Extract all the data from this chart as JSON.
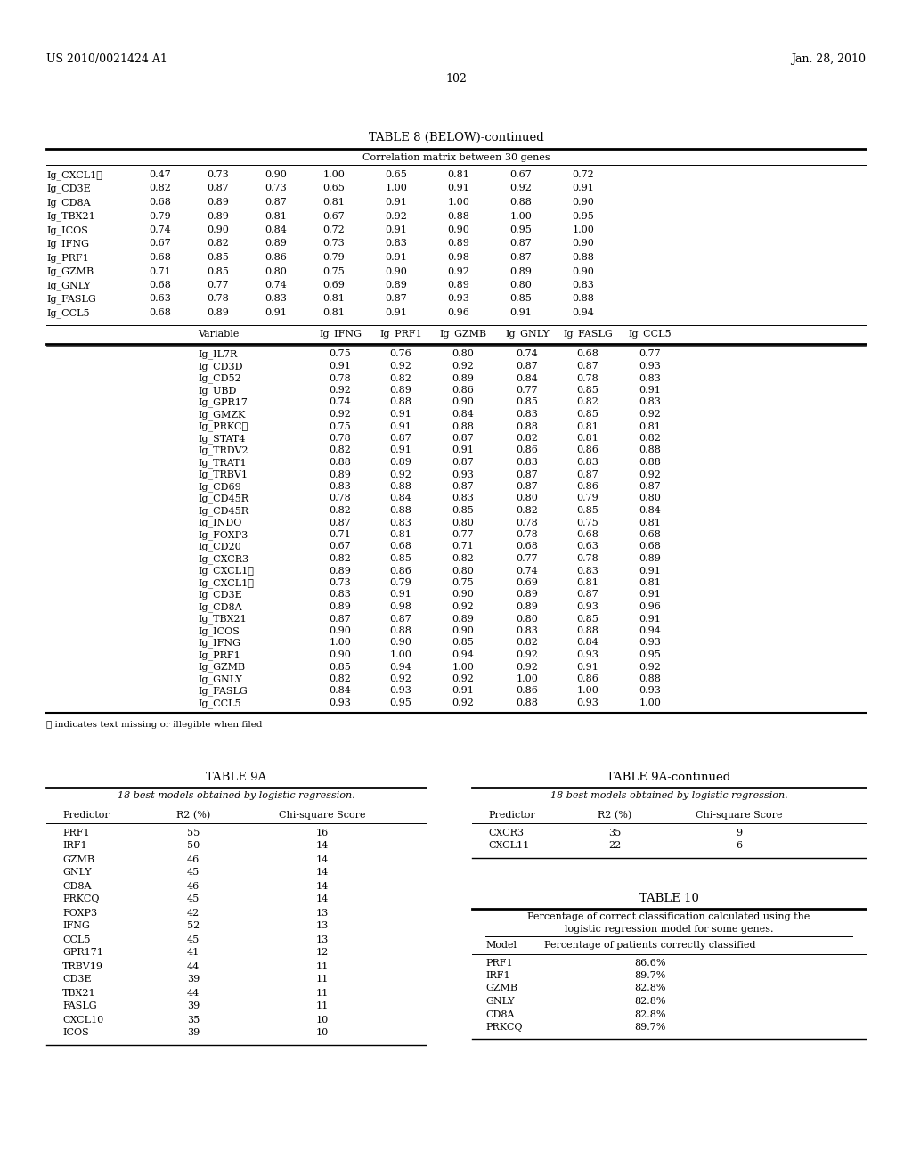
{
  "patent_left": "US 2010/0021424 A1",
  "patent_right": "Jan. 28, 2010",
  "page_num": "102",
  "table8_title": "TABLE 8 (BELOW)-continued",
  "table8_subtitle": "Correlation matrix between 30 genes",
  "table8_top_rows": [
    [
      "Ig_CXCL1ⓘ",
      "0.47",
      "0.73",
      "0.90",
      "1.00",
      "0.65",
      "0.81",
      "0.67",
      "0.72"
    ],
    [
      "Ig_CD3E",
      "0.82",
      "0.87",
      "0.73",
      "0.65",
      "1.00",
      "0.91",
      "0.92",
      "0.91"
    ],
    [
      "Ig_CD8A",
      "0.68",
      "0.89",
      "0.87",
      "0.81",
      "0.91",
      "1.00",
      "0.88",
      "0.90"
    ],
    [
      "Ig_TBX21",
      "0.79",
      "0.89",
      "0.81",
      "0.67",
      "0.92",
      "0.88",
      "1.00",
      "0.95"
    ],
    [
      "Ig_ICOS",
      "0.74",
      "0.90",
      "0.84",
      "0.72",
      "0.91",
      "0.90",
      "0.95",
      "1.00"
    ],
    [
      "Ig_IFNG",
      "0.67",
      "0.82",
      "0.89",
      "0.73",
      "0.83",
      "0.89",
      "0.87",
      "0.90"
    ],
    [
      "Ig_PRF1",
      "0.68",
      "0.85",
      "0.86",
      "0.79",
      "0.91",
      "0.98",
      "0.87",
      "0.88"
    ],
    [
      "Ig_GZMB",
      "0.71",
      "0.85",
      "0.80",
      "0.75",
      "0.90",
      "0.92",
      "0.89",
      "0.90"
    ],
    [
      "Ig_GNLY",
      "0.68",
      "0.77",
      "0.74",
      "0.69",
      "0.89",
      "0.89",
      "0.80",
      "0.83"
    ],
    [
      "Ig_FASLG",
      "0.63",
      "0.78",
      "0.83",
      "0.81",
      "0.87",
      "0.93",
      "0.85",
      "0.88"
    ],
    [
      "Ig_CCL5",
      "0.68",
      "0.89",
      "0.91",
      "0.81",
      "0.91",
      "0.96",
      "0.91",
      "0.94"
    ]
  ],
  "table8_header2": [
    "",
    "Variable",
    "Ig_IFNG",
    "Ig_PRF1",
    "Ig_GZMB",
    "Ig_GNLY",
    "Ig_FASLG",
    "Ig_CCL5"
  ],
  "table8_bottom_rows": [
    [
      "",
      "Ig_IL7R",
      "0.75",
      "0.76",
      "0.80",
      "0.74",
      "0.68",
      "0.77"
    ],
    [
      "",
      "Ig_CD3D",
      "0.91",
      "0.92",
      "0.92",
      "0.87",
      "0.87",
      "0.93"
    ],
    [
      "",
      "Ig_CD52",
      "0.78",
      "0.82",
      "0.89",
      "0.84",
      "0.78",
      "0.83"
    ],
    [
      "",
      "Ig_UBD",
      "0.92",
      "0.89",
      "0.86",
      "0.77",
      "0.85",
      "0.91"
    ],
    [
      "",
      "Ig_GPR17",
      "0.74",
      "0.88",
      "0.90",
      "0.85",
      "0.82",
      "0.83"
    ],
    [
      "",
      "Ig_GMZK",
      "0.92",
      "0.91",
      "0.84",
      "0.83",
      "0.85",
      "0.92"
    ],
    [
      "",
      "Ig_PRKCⓘ",
      "0.75",
      "0.91",
      "0.88",
      "0.88",
      "0.81",
      "0.81"
    ],
    [
      "",
      "Ig_STAT4",
      "0.78",
      "0.87",
      "0.87",
      "0.82",
      "0.81",
      "0.82"
    ],
    [
      "",
      "Ig_TRDV2",
      "0.82",
      "0.91",
      "0.91",
      "0.86",
      "0.86",
      "0.88"
    ],
    [
      "",
      "Ig_TRAT1",
      "0.88",
      "0.89",
      "0.87",
      "0.83",
      "0.83",
      "0.88"
    ],
    [
      "",
      "Ig_TRBV1",
      "0.89",
      "0.92",
      "0.93",
      "0.87",
      "0.87",
      "0.92"
    ],
    [
      "",
      "Ig_CD69",
      "0.83",
      "0.88",
      "0.87",
      "0.87",
      "0.86",
      "0.87"
    ],
    [
      "",
      "Ig_CD45R",
      "0.78",
      "0.84",
      "0.83",
      "0.80",
      "0.79",
      "0.80"
    ],
    [
      "",
      "Ig_CD45R",
      "0.82",
      "0.88",
      "0.85",
      "0.82",
      "0.85",
      "0.84"
    ],
    [
      "",
      "Ig_INDO",
      "0.87",
      "0.83",
      "0.80",
      "0.78",
      "0.75",
      "0.81"
    ],
    [
      "",
      "Ig_FOXP3",
      "0.71",
      "0.81",
      "0.77",
      "0.78",
      "0.68",
      "0.68"
    ],
    [
      "",
      "Ig_CD20",
      "0.67",
      "0.68",
      "0.71",
      "0.68",
      "0.63",
      "0.68"
    ],
    [
      "",
      "Ig_CXCR3",
      "0.82",
      "0.85",
      "0.82",
      "0.77",
      "0.78",
      "0.89"
    ],
    [
      "",
      "Ig_CXCL1ⓘ",
      "0.89",
      "0.86",
      "0.80",
      "0.74",
      "0.83",
      "0.91"
    ],
    [
      "",
      "Ig_CXCL1ⓘ",
      "0.73",
      "0.79",
      "0.75",
      "0.69",
      "0.81",
      "0.81"
    ],
    [
      "",
      "Ig_CD3E",
      "0.83",
      "0.91",
      "0.90",
      "0.89",
      "0.87",
      "0.91"
    ],
    [
      "",
      "Ig_CD8A",
      "0.89",
      "0.98",
      "0.92",
      "0.89",
      "0.93",
      "0.96"
    ],
    [
      "",
      "Ig_TBX21",
      "0.87",
      "0.87",
      "0.89",
      "0.80",
      "0.85",
      "0.91"
    ],
    [
      "",
      "Ig_ICOS",
      "0.90",
      "0.88",
      "0.90",
      "0.83",
      "0.88",
      "0.94"
    ],
    [
      "",
      "Ig_IFNG",
      "1.00",
      "0.90",
      "0.85",
      "0.82",
      "0.84",
      "0.93"
    ],
    [
      "",
      "Ig_PRF1",
      "0.90",
      "1.00",
      "0.94",
      "0.92",
      "0.93",
      "0.95"
    ],
    [
      "",
      "Ig_GZMB",
      "0.85",
      "0.94",
      "1.00",
      "0.92",
      "0.91",
      "0.92"
    ],
    [
      "",
      "Ig_GNLY",
      "0.82",
      "0.92",
      "0.92",
      "1.00",
      "0.86",
      "0.88"
    ],
    [
      "",
      "Ig_FASLG",
      "0.84",
      "0.93",
      "0.91",
      "0.86",
      "1.00",
      "0.93"
    ],
    [
      "",
      "Ig_CCL5",
      "0.93",
      "0.95",
      "0.92",
      "0.88",
      "0.93",
      "1.00"
    ]
  ],
  "footnote": "ⓘ indicates text missing or illegible when filed",
  "table9a_title": "TABLE 9A",
  "table9a_cont_title": "TABLE 9A-continued",
  "table9a_subtitle": "18 best models obtained by logistic regression.",
  "table9a_header": [
    "Predictor",
    "R2 (%)",
    "Chi-square Score"
  ],
  "table9a_rows": [
    [
      "PRF1",
      "55",
      "16"
    ],
    [
      "IRF1",
      "50",
      "14"
    ],
    [
      "GZMB",
      "46",
      "14"
    ],
    [
      "GNLY",
      "45",
      "14"
    ],
    [
      "CD8A",
      "46",
      "14"
    ],
    [
      "PRKCQ",
      "45",
      "14"
    ],
    [
      "FOXP3",
      "42",
      "13"
    ],
    [
      "IFNG",
      "52",
      "13"
    ],
    [
      "CCL5",
      "45",
      "13"
    ],
    [
      "GPR171",
      "41",
      "12"
    ],
    [
      "TRBV19",
      "44",
      "11"
    ],
    [
      "CD3E",
      "39",
      "11"
    ],
    [
      "TBX21",
      "44",
      "11"
    ],
    [
      "FASLG",
      "39",
      "11"
    ],
    [
      "CXCL10",
      "35",
      "10"
    ],
    [
      "ICOS",
      "39",
      "10"
    ]
  ],
  "table9a_cont_subtitle": "18 best models obtained by logistic regression.",
  "table9a_cont_rows": [
    [
      "CXCR3",
      "35",
      "9"
    ],
    [
      "CXCL11",
      "22",
      "6"
    ]
  ],
  "table10_title": "TABLE 10",
  "table10_subtitle_l1": "Percentage of correct classification calculated using the",
  "table10_subtitle_l2": "logistic regression model for some genes.",
  "table10_header": [
    "Model",
    "Percentage of patients correctly classified"
  ],
  "table10_rows": [
    [
      "PRF1",
      "86.6%"
    ],
    [
      "IRF1",
      "89.7%"
    ],
    [
      "GZMB",
      "82.8%"
    ],
    [
      "GNLY",
      "82.8%"
    ],
    [
      "CD8A",
      "82.8%"
    ],
    [
      "PRKCQ",
      "89.7%"
    ]
  ]
}
